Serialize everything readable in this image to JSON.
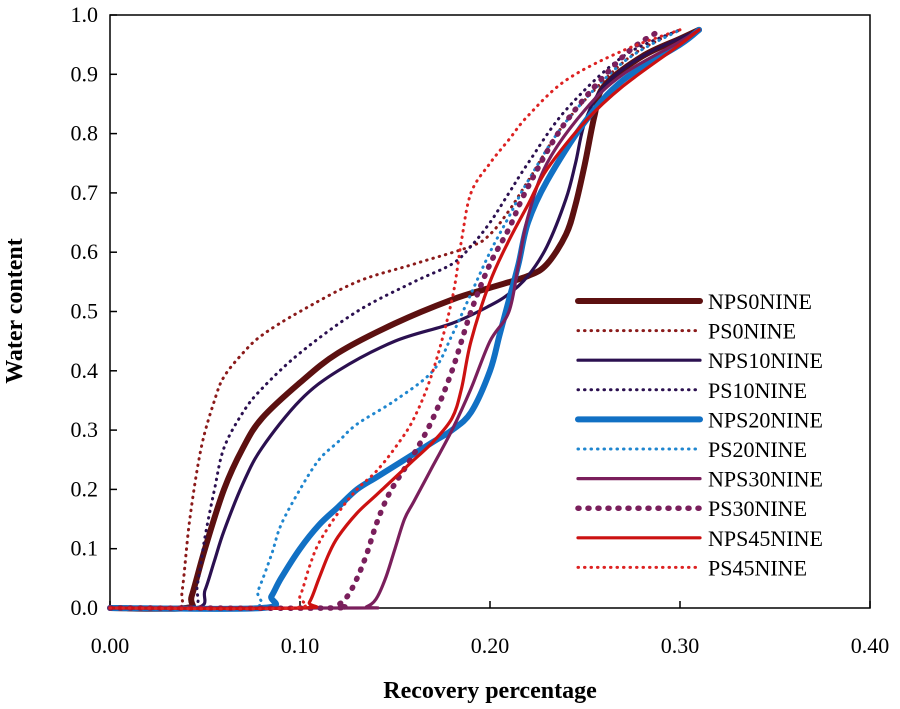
{
  "chart_data": {
    "type": "line",
    "title": "",
    "xlabel": "Recovery percentage",
    "ylabel": "Water content",
    "xlim": [
      0,
      0.4
    ],
    "ylim": [
      0,
      1.0
    ],
    "grid": false,
    "legend_position": "right",
    "x_ticks": [
      "0.00",
      "0.10",
      "0.20",
      "0.30",
      "0.40"
    ],
    "y_ticks": [
      "0.0",
      "0.1",
      "0.2",
      "0.3",
      "0.4",
      "0.5",
      "0.6",
      "0.7",
      "0.8",
      "0.9",
      "1.0"
    ],
    "series": [
      {
        "name": "NPS0NINE",
        "color": "#5c1010",
        "style": "solid",
        "weight": "thick",
        "x": [
          0,
          0.04,
          0.043,
          0.05,
          0.06,
          0.07,
          0.08,
          0.1,
          0.12,
          0.15,
          0.18,
          0.2,
          0.22,
          0.23,
          0.24,
          0.245,
          0.25,
          0.255,
          0.26,
          0.28,
          0.3,
          0.31
        ],
        "y": [
          0,
          0,
          0.02,
          0.1,
          0.2,
          0.27,
          0.32,
          0.38,
          0.43,
          0.48,
          0.52,
          0.54,
          0.56,
          0.58,
          0.63,
          0.68,
          0.75,
          0.83,
          0.88,
          0.93,
          0.96,
          0.975
        ]
      },
      {
        "name": "PS0NINE",
        "color": "#8b1a1a",
        "style": "dotted",
        "weight": "normal",
        "x": [
          0,
          0.035,
          0.038,
          0.042,
          0.048,
          0.055,
          0.06,
          0.07,
          0.08,
          0.1,
          0.13,
          0.16,
          0.19,
          0.2,
          0.21,
          0.22,
          0.24,
          0.27,
          0.29,
          0.3
        ],
        "y": [
          0,
          0,
          0.03,
          0.15,
          0.27,
          0.35,
          0.39,
          0.43,
          0.46,
          0.5,
          0.55,
          0.58,
          0.61,
          0.63,
          0.67,
          0.72,
          0.82,
          0.92,
          0.96,
          0.975
        ]
      },
      {
        "name": "NPS10NINE",
        "color": "#2b1050",
        "style": "solid",
        "weight": "normal",
        "x": [
          0,
          0.045,
          0.05,
          0.055,
          0.06,
          0.07,
          0.08,
          0.1,
          0.12,
          0.15,
          0.18,
          0.2,
          0.21,
          0.22,
          0.23,
          0.24,
          0.245,
          0.25,
          0.26,
          0.28,
          0.31
        ],
        "y": [
          0,
          0,
          0.03,
          0.08,
          0.13,
          0.21,
          0.27,
          0.35,
          0.4,
          0.45,
          0.48,
          0.51,
          0.53,
          0.56,
          0.61,
          0.69,
          0.75,
          0.82,
          0.88,
          0.93,
          0.975
        ]
      },
      {
        "name": "PS10NINE",
        "color": "#2b1050",
        "style": "dotted",
        "weight": "normal",
        "x": [
          0,
          0.042,
          0.046,
          0.05,
          0.055,
          0.06,
          0.07,
          0.08,
          0.1,
          0.13,
          0.16,
          0.18,
          0.19,
          0.2,
          0.21,
          0.22,
          0.24,
          0.27,
          0.3
        ],
        "y": [
          0,
          0,
          0.04,
          0.12,
          0.2,
          0.27,
          0.33,
          0.37,
          0.43,
          0.5,
          0.55,
          0.58,
          0.61,
          0.65,
          0.7,
          0.75,
          0.84,
          0.93,
          0.975
        ]
      },
      {
        "name": "NPS20NINE",
        "color": "#1170c4",
        "style": "solid",
        "weight": "thick",
        "x": [
          0,
          0.08,
          0.085,
          0.09,
          0.1,
          0.11,
          0.12,
          0.13,
          0.14,
          0.15,
          0.17,
          0.18,
          0.19,
          0.2,
          0.205,
          0.21,
          0.215,
          0.22,
          0.23,
          0.25,
          0.27,
          0.3,
          0.31
        ],
        "y": [
          0,
          0,
          0.02,
          0.05,
          0.1,
          0.14,
          0.17,
          0.2,
          0.22,
          0.24,
          0.28,
          0.3,
          0.33,
          0.4,
          0.46,
          0.52,
          0.58,
          0.65,
          0.72,
          0.82,
          0.89,
          0.95,
          0.975
        ]
      },
      {
        "name": "PS20NINE",
        "color": "#1f86cf",
        "style": "dotted",
        "weight": "normal",
        "x": [
          0,
          0.073,
          0.078,
          0.085,
          0.09,
          0.1,
          0.11,
          0.12,
          0.13,
          0.15,
          0.17,
          0.18,
          0.19,
          0.2,
          0.21,
          0.22,
          0.24,
          0.27,
          0.3
        ],
        "y": [
          0,
          0,
          0.03,
          0.09,
          0.14,
          0.2,
          0.25,
          0.28,
          0.31,
          0.35,
          0.4,
          0.46,
          0.53,
          0.6,
          0.66,
          0.72,
          0.82,
          0.92,
          0.975
        ]
      },
      {
        "name": "NPS30NINE",
        "color": "#7a1f5c",
        "style": "solid",
        "weight": "normal",
        "x": [
          0,
          0.13,
          0.135,
          0.14,
          0.145,
          0.15,
          0.155,
          0.16,
          0.17,
          0.18,
          0.19,
          0.2,
          0.21,
          0.215,
          0.22,
          0.23,
          0.25,
          0.27,
          0.3,
          0.31
        ],
        "y": [
          0,
          0,
          0.002,
          0.015,
          0.05,
          0.1,
          0.15,
          0.18,
          0.24,
          0.3,
          0.37,
          0.45,
          0.5,
          0.58,
          0.66,
          0.75,
          0.84,
          0.9,
          0.955,
          0.975
        ]
      },
      {
        "name": "PS30NINE",
        "color": "#7a1f5c",
        "style": "dotted",
        "weight": "thick",
        "x": [
          0,
          0.115,
          0.12,
          0.125,
          0.13,
          0.135,
          0.14,
          0.145,
          0.15,
          0.16,
          0.17,
          0.18,
          0.19,
          0.2,
          0.21,
          0.22,
          0.24,
          0.27,
          0.29
        ],
        "y": [
          0,
          0,
          0.005,
          0.02,
          0.05,
          0.09,
          0.14,
          0.18,
          0.21,
          0.26,
          0.32,
          0.4,
          0.5,
          0.58,
          0.64,
          0.71,
          0.82,
          0.93,
          0.975
        ]
      },
      {
        "name": "NPS45NINE",
        "color": "#cc1111",
        "style": "solid",
        "weight": "normal",
        "x": [
          0,
          0.1,
          0.105,
          0.11,
          0.115,
          0.12,
          0.13,
          0.14,
          0.15,
          0.16,
          0.17,
          0.18,
          0.185,
          0.19,
          0.2,
          0.21,
          0.22,
          0.23,
          0.25,
          0.27,
          0.3,
          0.31
        ],
        "y": [
          0,
          0,
          0.01,
          0.05,
          0.09,
          0.12,
          0.16,
          0.19,
          0.22,
          0.25,
          0.28,
          0.32,
          0.37,
          0.45,
          0.55,
          0.62,
          0.68,
          0.74,
          0.82,
          0.88,
          0.95,
          0.975
        ]
      },
      {
        "name": "PS45NINE",
        "color": "#dd2222",
        "style": "dotted",
        "weight": "normal",
        "x": [
          0,
          0.095,
          0.1,
          0.105,
          0.11,
          0.12,
          0.13,
          0.14,
          0.15,
          0.16,
          0.17,
          0.18,
          0.185,
          0.19,
          0.2,
          0.21,
          0.22,
          0.24,
          0.27,
          0.3
        ],
        "y": [
          0,
          0,
          0.02,
          0.07,
          0.11,
          0.16,
          0.2,
          0.23,
          0.27,
          0.32,
          0.4,
          0.52,
          0.62,
          0.7,
          0.75,
          0.79,
          0.83,
          0.89,
          0.94,
          0.975
        ]
      }
    ]
  }
}
